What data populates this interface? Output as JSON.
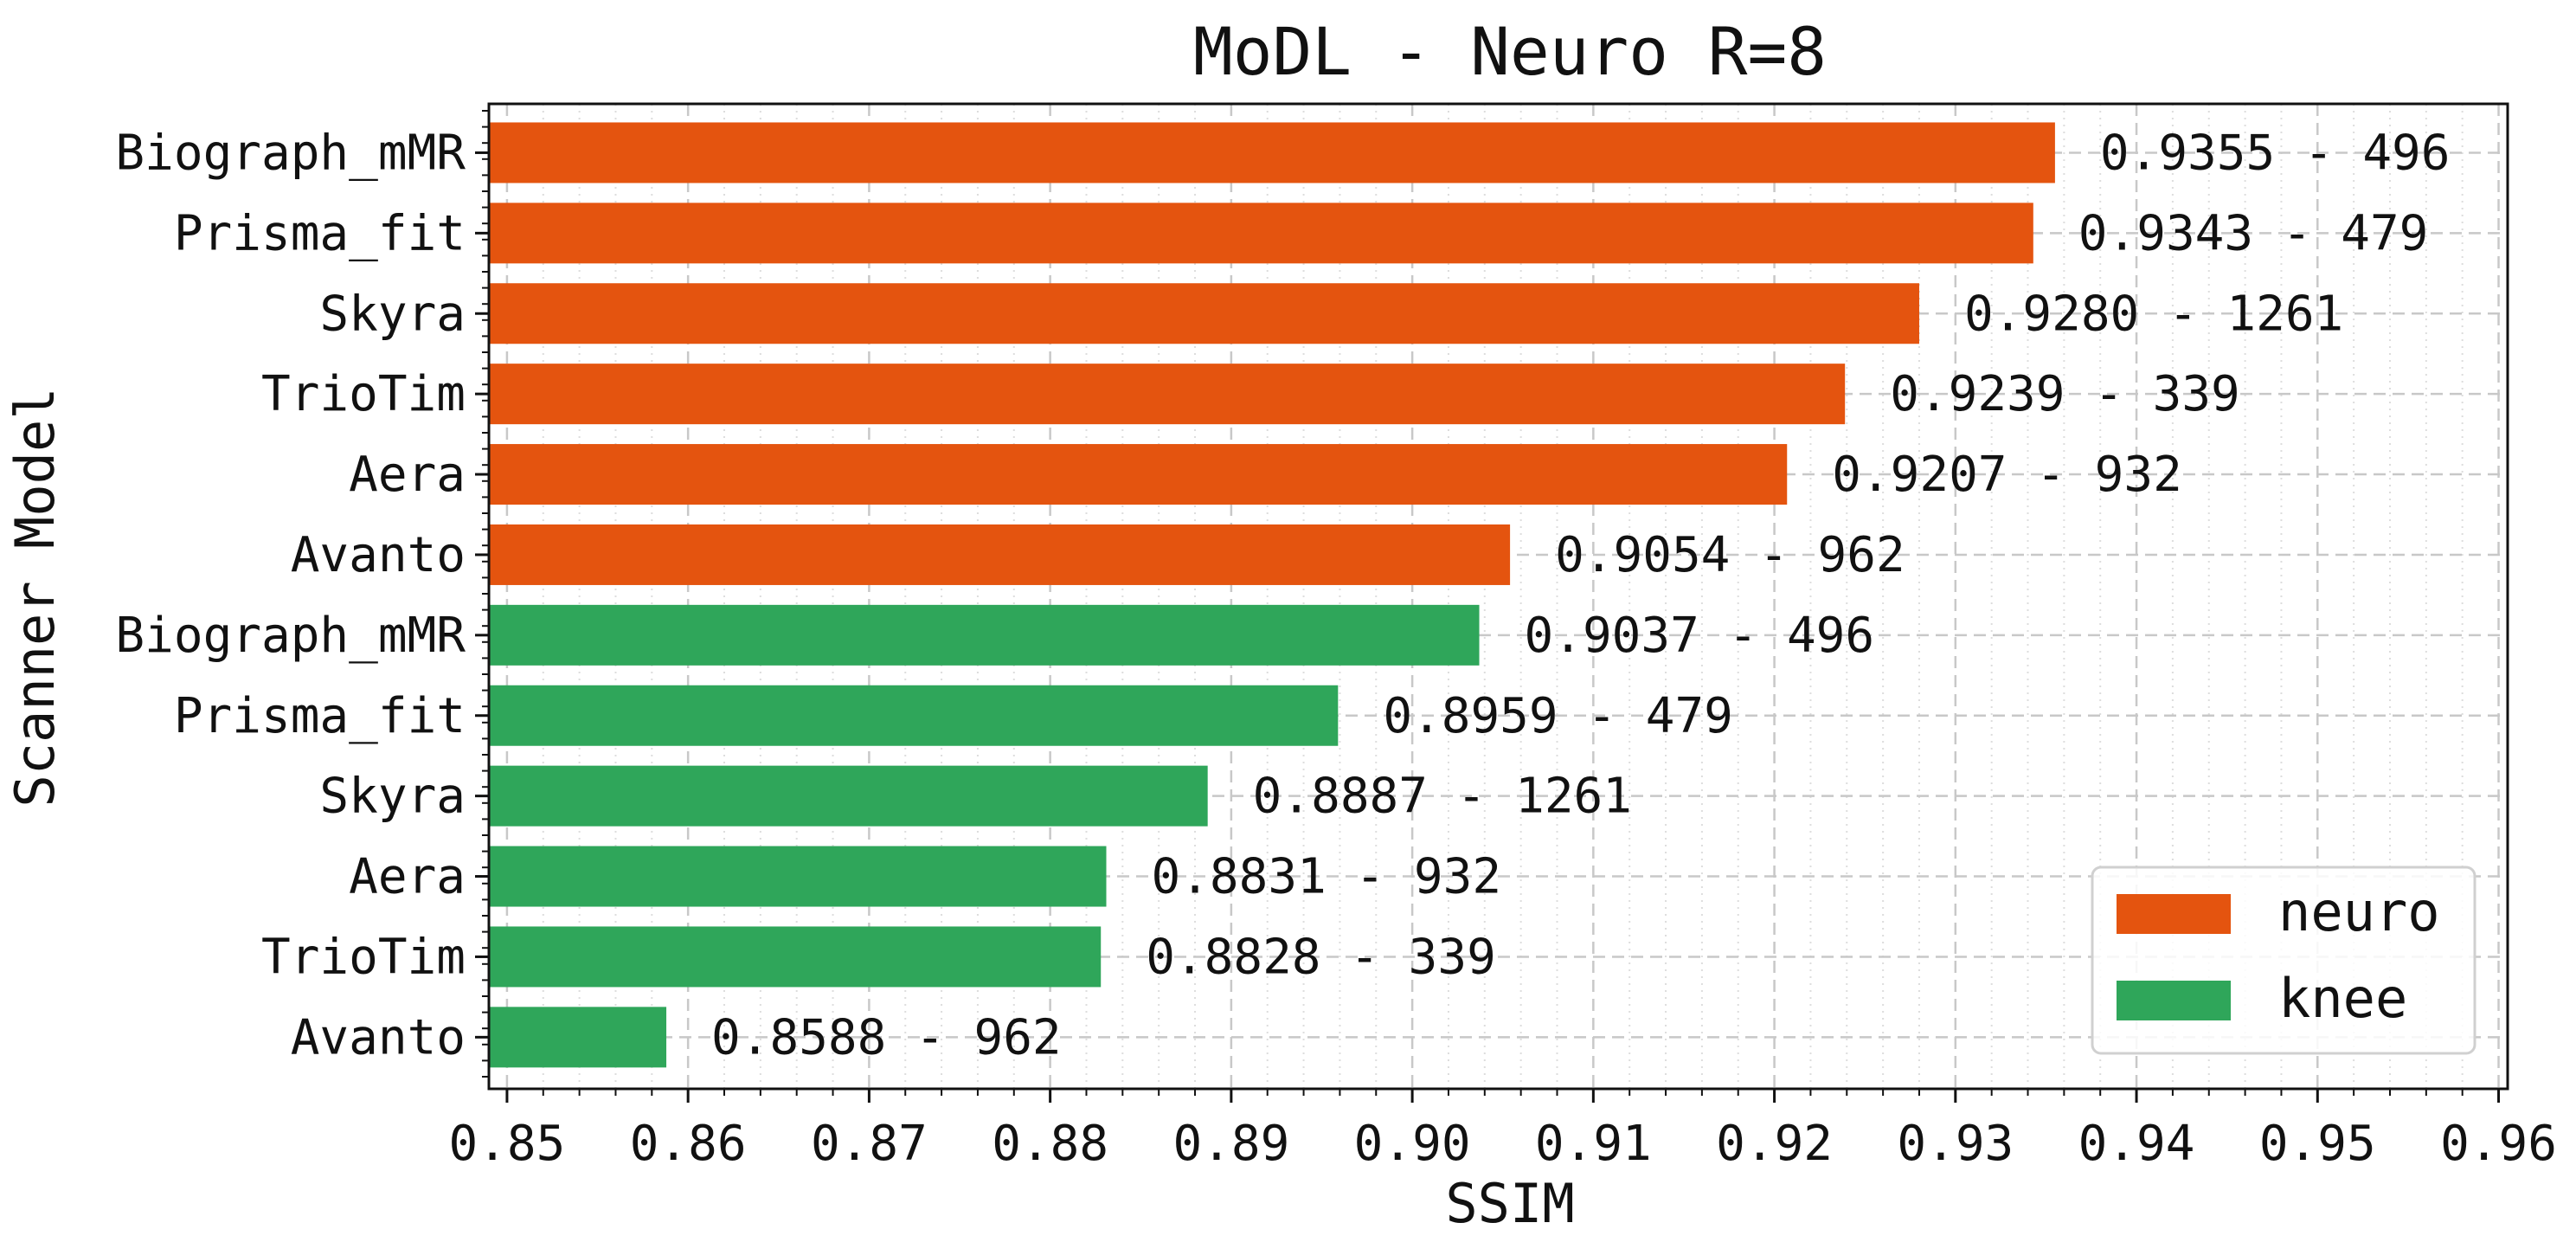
{
  "chart_data": {
    "type": "bar",
    "orientation": "horizontal",
    "title": "MoDL - Neuro R=8",
    "xlabel": "SSIM",
    "ylabel": "Scanner Model",
    "xlim": [
      0.849,
      0.9605
    ],
    "xticks": [
      "0.85",
      "0.86",
      "0.87",
      "0.88",
      "0.89",
      "0.90",
      "0.91",
      "0.92",
      "0.93",
      "0.94",
      "0.95",
      "0.96"
    ],
    "grid": true,
    "legend_position": "lower-right",
    "series_colors": {
      "neuro": "#e4540f",
      "knee": "#2fa65a"
    },
    "legend": [
      {
        "name": "neuro",
        "color": "#e4540f"
      },
      {
        "name": "knee",
        "color": "#2fa65a"
      }
    ],
    "bars": [
      {
        "category": "Biograph_mMR",
        "series": "neuro",
        "value": 0.9355,
        "label": "0.9355 - 496"
      },
      {
        "category": "Prisma_fit",
        "series": "neuro",
        "value": 0.9343,
        "label": "0.9343 - 479"
      },
      {
        "category": "Skyra",
        "series": "neuro",
        "value": 0.928,
        "label": "0.9280 - 1261"
      },
      {
        "category": "TrioTim",
        "series": "neuro",
        "value": 0.9239,
        "label": "0.9239 - 339"
      },
      {
        "category": "Aera",
        "series": "neuro",
        "value": 0.9207,
        "label": "0.9207 - 932"
      },
      {
        "category": "Avanto",
        "series": "neuro",
        "value": 0.9054,
        "label": "0.9054 - 962"
      },
      {
        "category": "Biograph_mMR",
        "series": "knee",
        "value": 0.9037,
        "label": "0.9037 - 496"
      },
      {
        "category": "Prisma_fit",
        "series": "knee",
        "value": 0.8959,
        "label": "0.8959 - 479"
      },
      {
        "category": "Skyra",
        "series": "knee",
        "value": 0.8887,
        "label": "0.8887 - 1261"
      },
      {
        "category": "Aera",
        "series": "knee",
        "value": 0.8831,
        "label": "0.8831 - 932"
      },
      {
        "category": "TrioTim",
        "series": "knee",
        "value": 0.8828,
        "label": "0.8828 - 339"
      },
      {
        "category": "Avanto",
        "series": "knee",
        "value": 0.8588,
        "label": "0.8588 - 962"
      }
    ]
  }
}
